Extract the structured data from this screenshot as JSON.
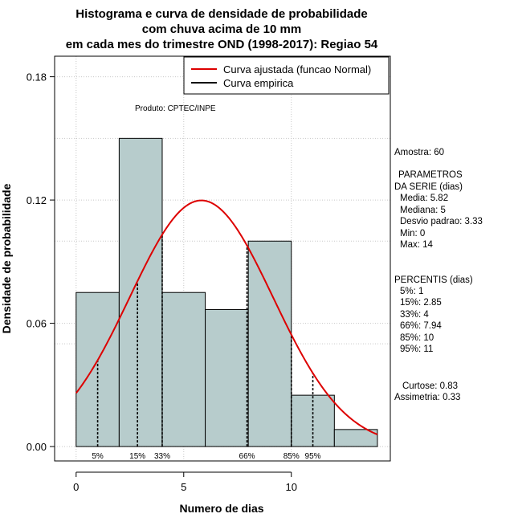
{
  "chart_data": {
    "type": "bar",
    "title_lines": [
      "Histograma e curva de densidade de probabilidade",
      "com chuva acima de 10 mm",
      "em cada mes do trimestre OND (1998-2017): Regiao 54"
    ],
    "xlabel": "Numero de dias",
    "ylabel": "Densidade de probabilidade",
    "xlim": [
      -1,
      14.6
    ],
    "ylim": [
      -0.007,
      0.19
    ],
    "xticks": [
      0,
      5,
      10
    ],
    "yticks": [
      0.0,
      0.06,
      0.12,
      0.18
    ],
    "ytick_labels": [
      "0.00",
      "0.06",
      "0.12",
      "0.18"
    ],
    "xtick_labels": [
      "0",
      "5",
      "10"
    ],
    "grid": true,
    "bins": [
      {
        "start": 0,
        "end": 2,
        "density": 0.075
      },
      {
        "start": 2,
        "end": 4,
        "density": 0.15
      },
      {
        "start": 4,
        "end": 6,
        "density": 0.075
      },
      {
        "start": 6,
        "end": 8,
        "density": 0.0667
      },
      {
        "start": 8,
        "end": 10,
        "density": 0.1
      },
      {
        "start": 10,
        "end": 12,
        "density": 0.025
      },
      {
        "start": 12,
        "end": 14,
        "density": 0.0083
      }
    ],
    "bar_color": "#b7cccc",
    "curve": {
      "name": "Curva ajustada (funcao Normal)",
      "mean": 5.82,
      "sd": 3.33,
      "color": "#dd0000"
    },
    "empirical": {
      "name": "Curva empirica",
      "color": "#000000"
    },
    "percentiles": [
      {
        "label": "5%",
        "x": 1
      },
      {
        "label": "15%",
        "x": 2.85
      },
      {
        "label": "33%",
        "x": 4
      },
      {
        "label": "66%",
        "x": 7.94
      },
      {
        "label": "85%",
        "x": 10
      },
      {
        "label": "95%",
        "x": 11
      }
    ],
    "legend_position": "top-right",
    "product_label": "Produto: CPTEC/INPE"
  },
  "side_panel": {
    "amostra": "Amostra: 60",
    "parametros_title_1": "PARAMETROS",
    "parametros_title_2": "DA SERIE (dias)",
    "media": "Media: 5.82",
    "mediana": "Mediana: 5",
    "desvio": "Desvio padrao: 3.33",
    "min": "Min: 0",
    "max": "Max: 14",
    "percentis_title": "PERCENTIS (dias)",
    "p5": "5%: 1",
    "p15": "15%: 2.85",
    "p33": "33%: 4",
    "p66": "66%: 7.94",
    "p85": "85%: 10",
    "p95": "95%: 11",
    "curtose": "Curtose: 0.83",
    "assimetria": "Assimetria: 0.33"
  }
}
